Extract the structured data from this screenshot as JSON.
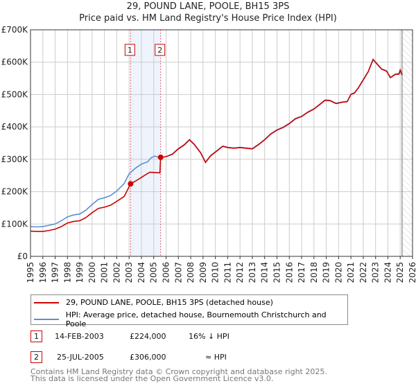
{
  "chart_data": {
    "type": "line",
    "title": "29, POUND LANE, POOLE, BH15 3PS",
    "subtitle": "Price paid vs. HM Land Registry's House Price Index (HPI)",
    "xlim": [
      1995,
      2026
    ],
    "ylim": [
      0,
      700000
    ],
    "x_ticks": [
      "1995",
      "1996",
      "1997",
      "1998",
      "1999",
      "2000",
      "2001",
      "2002",
      "2003",
      "2004",
      "2005",
      "2006",
      "2007",
      "2008",
      "2009",
      "2010",
      "2011",
      "2012",
      "2013",
      "2014",
      "2015",
      "2016",
      "2017",
      "2018",
      "2019",
      "2020",
      "2021",
      "2022",
      "2023",
      "2024",
      "2025",
      "2026"
    ],
    "y_ticks": [
      {
        "v": 0,
        "l": "£0"
      },
      {
        "v": 100000,
        "l": "£100K"
      },
      {
        "v": 200000,
        "l": "£200K"
      },
      {
        "v": 300000,
        "l": "£300K"
      },
      {
        "v": 400000,
        "l": "£400K"
      },
      {
        "v": 500000,
        "l": "£500K"
      },
      {
        "v": 600000,
        "l": "£600K"
      },
      {
        "v": 700000,
        "l": "£700K"
      }
    ],
    "grid": true,
    "series": [
      {
        "name": "29, POUND LANE, POOLE, BH15 3PS (detached house)",
        "color": "#cc0000",
        "points": [
          [
            1995,
            78
          ],
          [
            1995.5,
            77
          ],
          [
            1996,
            77
          ],
          [
            1996.5,
            80
          ],
          [
            1997,
            84
          ],
          [
            1997.5,
            92
          ],
          [
            1998,
            103
          ],
          [
            1998.5,
            108
          ],
          [
            1999,
            110
          ],
          [
            1999.5,
            120
          ],
          [
            2000,
            135
          ],
          [
            2000.5,
            148
          ],
          [
            2001,
            152
          ],
          [
            2001.5,
            158
          ],
          [
            2002,
            170
          ],
          [
            2002.6,
            185
          ],
          [
            2003.12,
            224
          ],
          [
            2003.5,
            232
          ],
          [
            2004,
            244
          ],
          [
            2004.5,
            256
          ],
          [
            2004.7,
            260
          ],
          [
            2005.5,
            258
          ],
          [
            2005.56,
            306
          ],
          [
            2006,
            308
          ],
          [
            2006.5,
            315
          ],
          [
            2007,
            332
          ],
          [
            2007.5,
            345
          ],
          [
            2007.9,
            360
          ],
          [
            2008.3,
            345
          ],
          [
            2008.8,
            320
          ],
          [
            2009.2,
            290
          ],
          [
            2009.6,
            310
          ],
          [
            2010,
            322
          ],
          [
            2010.6,
            340
          ],
          [
            2011,
            336
          ],
          [
            2011.5,
            334
          ],
          [
            2012,
            336
          ],
          [
            2012.5,
            334
          ],
          [
            2013,
            332
          ],
          [
            2013.5,
            345
          ],
          [
            2014,
            360
          ],
          [
            2014.5,
            378
          ],
          [
            2015,
            390
          ],
          [
            2015.5,
            398
          ],
          [
            2016,
            410
          ],
          [
            2016.5,
            425
          ],
          [
            2017,
            432
          ],
          [
            2017.5,
            445
          ],
          [
            2018,
            455
          ],
          [
            2018.5,
            470
          ],
          [
            2018.9,
            482
          ],
          [
            2019.3,
            481
          ],
          [
            2019.8,
            472
          ],
          [
            2020.3,
            476
          ],
          [
            2020.7,
            478
          ],
          [
            2021,
            500
          ],
          [
            2021.3,
            505
          ],
          [
            2021.6,
            520
          ],
          [
            2022,
            545
          ],
          [
            2022.4,
            570
          ],
          [
            2022.8,
            608
          ],
          [
            2023.1,
            595
          ],
          [
            2023.5,
            578
          ],
          [
            2023.9,
            572
          ],
          [
            2024.2,
            552
          ],
          [
            2024.6,
            562
          ],
          [
            2024.9,
            563
          ],
          [
            2025.0,
            575
          ],
          [
            2025.15,
            560
          ]
        ]
      },
      {
        "name": "HPI: Average price, detached house, Bournemouth Christchurch and Poole",
        "color": "#5b8fd4",
        "points": [
          [
            1995,
            92
          ],
          [
            1995.5,
            91
          ],
          [
            1996,
            92
          ],
          [
            1996.5,
            96
          ],
          [
            1997,
            100
          ],
          [
            1997.5,
            110
          ],
          [
            1998,
            122
          ],
          [
            1998.5,
            128
          ],
          [
            1999,
            131
          ],
          [
            1999.5,
            143
          ],
          [
            2000,
            160
          ],
          [
            2000.5,
            176
          ],
          [
            2001,
            181
          ],
          [
            2001.5,
            188
          ],
          [
            2002,
            202
          ],
          [
            2002.6,
            225
          ],
          [
            2003,
            255
          ],
          [
            2003.5,
            272
          ],
          [
            2004,
            285
          ],
          [
            2004.5,
            292
          ],
          [
            2004.8,
            305
          ],
          [
            2005.1,
            310
          ],
          [
            2005.5,
            304
          ],
          [
            2005.56,
            306
          ],
          [
            2006,
            308
          ],
          [
            2006.5,
            316
          ],
          [
            2007,
            333
          ],
          [
            2007.5,
            346
          ],
          [
            2007.9,
            361
          ],
          [
            2008.3,
            346
          ],
          [
            2008.8,
            321
          ],
          [
            2009.2,
            291
          ],
          [
            2009.6,
            311
          ],
          [
            2010,
            323
          ],
          [
            2010.6,
            341
          ],
          [
            2011,
            337
          ],
          [
            2011.5,
            335
          ],
          [
            2012,
            337
          ],
          [
            2012.5,
            335
          ],
          [
            2013,
            333
          ],
          [
            2013.5,
            346
          ],
          [
            2014,
            361
          ],
          [
            2014.5,
            379
          ],
          [
            2015,
            391
          ],
          [
            2015.5,
            399
          ],
          [
            2016,
            411
          ],
          [
            2016.5,
            426
          ],
          [
            2017,
            433
          ],
          [
            2017.5,
            446
          ],
          [
            2018,
            456
          ],
          [
            2018.5,
            471
          ],
          [
            2018.9,
            483
          ],
          [
            2019.3,
            482
          ],
          [
            2019.8,
            473
          ],
          [
            2020.3,
            477
          ],
          [
            2020.7,
            479
          ],
          [
            2021,
            501
          ],
          [
            2021.3,
            506
          ],
          [
            2021.6,
            521
          ],
          [
            2022,
            546
          ],
          [
            2022.4,
            571
          ],
          [
            2022.8,
            609
          ],
          [
            2023.1,
            596
          ],
          [
            2023.5,
            579
          ],
          [
            2023.9,
            573
          ],
          [
            2024.2,
            553
          ],
          [
            2024.6,
            563
          ],
          [
            2024.9,
            565
          ],
          [
            2025.0,
            577
          ],
          [
            2025.15,
            562
          ]
        ]
      }
    ],
    "sales": [
      {
        "label": "1",
        "x": 2003.12,
        "value": 224000
      },
      {
        "label": "2",
        "x": 2005.56,
        "value": 306000
      }
    ],
    "shaded_span": [
      2003.12,
      2005.56
    ],
    "forecast_hatch_from": 2025.15
  },
  "legend": {
    "red": "29, POUND LANE, POOLE, BH15 3PS (detached house)",
    "blue": "HPI: Average price, detached house, Bournemouth Christchurch and Poole"
  },
  "transactions": [
    {
      "num": "1",
      "date": "14-FEB-2003",
      "price": "£224,000",
      "hpi": "16% ↓ HPI"
    },
    {
      "num": "2",
      "date": "25-JUL-2005",
      "price": "£306,000",
      "hpi": "≈ HPI"
    }
  ],
  "footer": {
    "line1": "Contains HM Land Registry data © Crown copyright and database right 2025.",
    "line2": "This data is licensed under the Open Government Licence v3.0."
  }
}
